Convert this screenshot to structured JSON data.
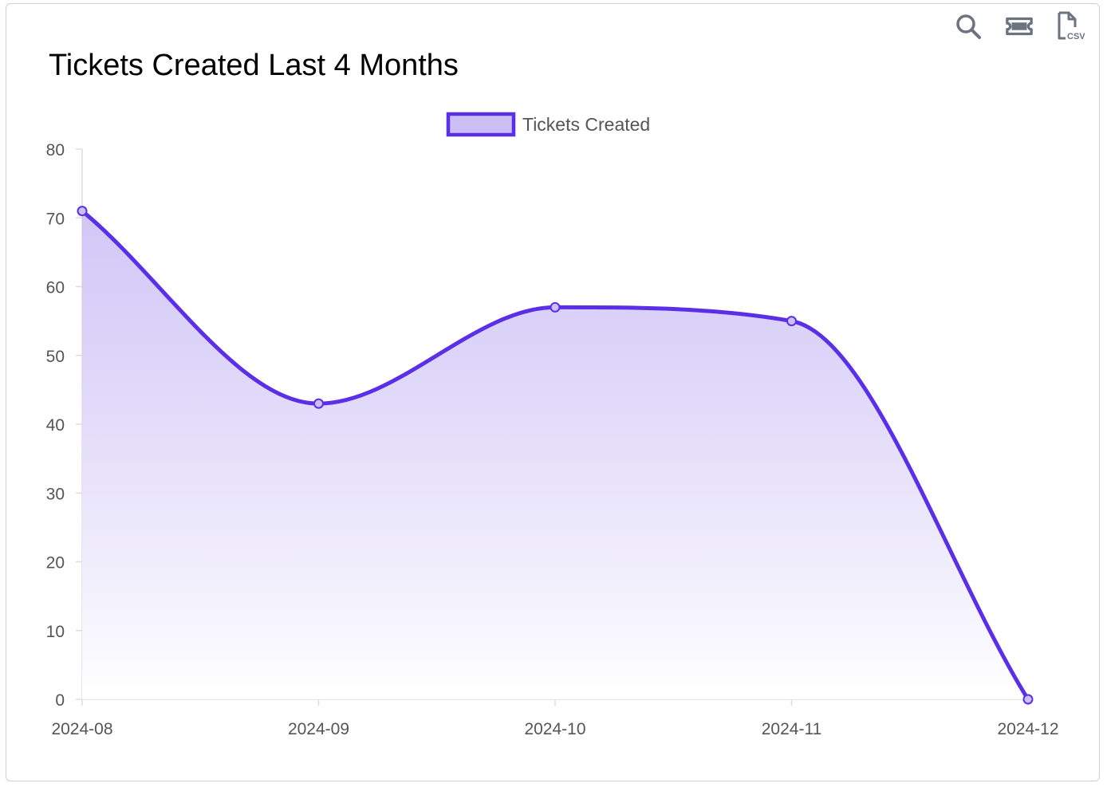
{
  "toolbar": {
    "zoom_icon": "magnifier-icon",
    "pan_icon": "ticket-icon",
    "download_icon": "csv-file-icon",
    "csv_label": "CSV"
  },
  "chart_data": {
    "type": "area",
    "title": "Tickets Created Last 4 Months",
    "categories": [
      "2024-08",
      "2024-09",
      "2024-10",
      "2024-11",
      "2024-12"
    ],
    "series": [
      {
        "name": "Tickets Created",
        "values": [
          71,
          43,
          57,
          55,
          0
        ]
      }
    ],
    "ylim": [
      0,
      80
    ],
    "yticks": [
      0,
      10,
      20,
      30,
      40,
      50,
      60,
      70,
      80
    ],
    "xlabel": "",
    "ylabel": "",
    "legend": "top-center",
    "colors": {
      "line": "#5b2ee8",
      "fill_top": "#c9bdf5",
      "fill_bottom": "#ffffff",
      "legend_fill": "#cbbff4",
      "axis": "#dddddd"
    }
  }
}
